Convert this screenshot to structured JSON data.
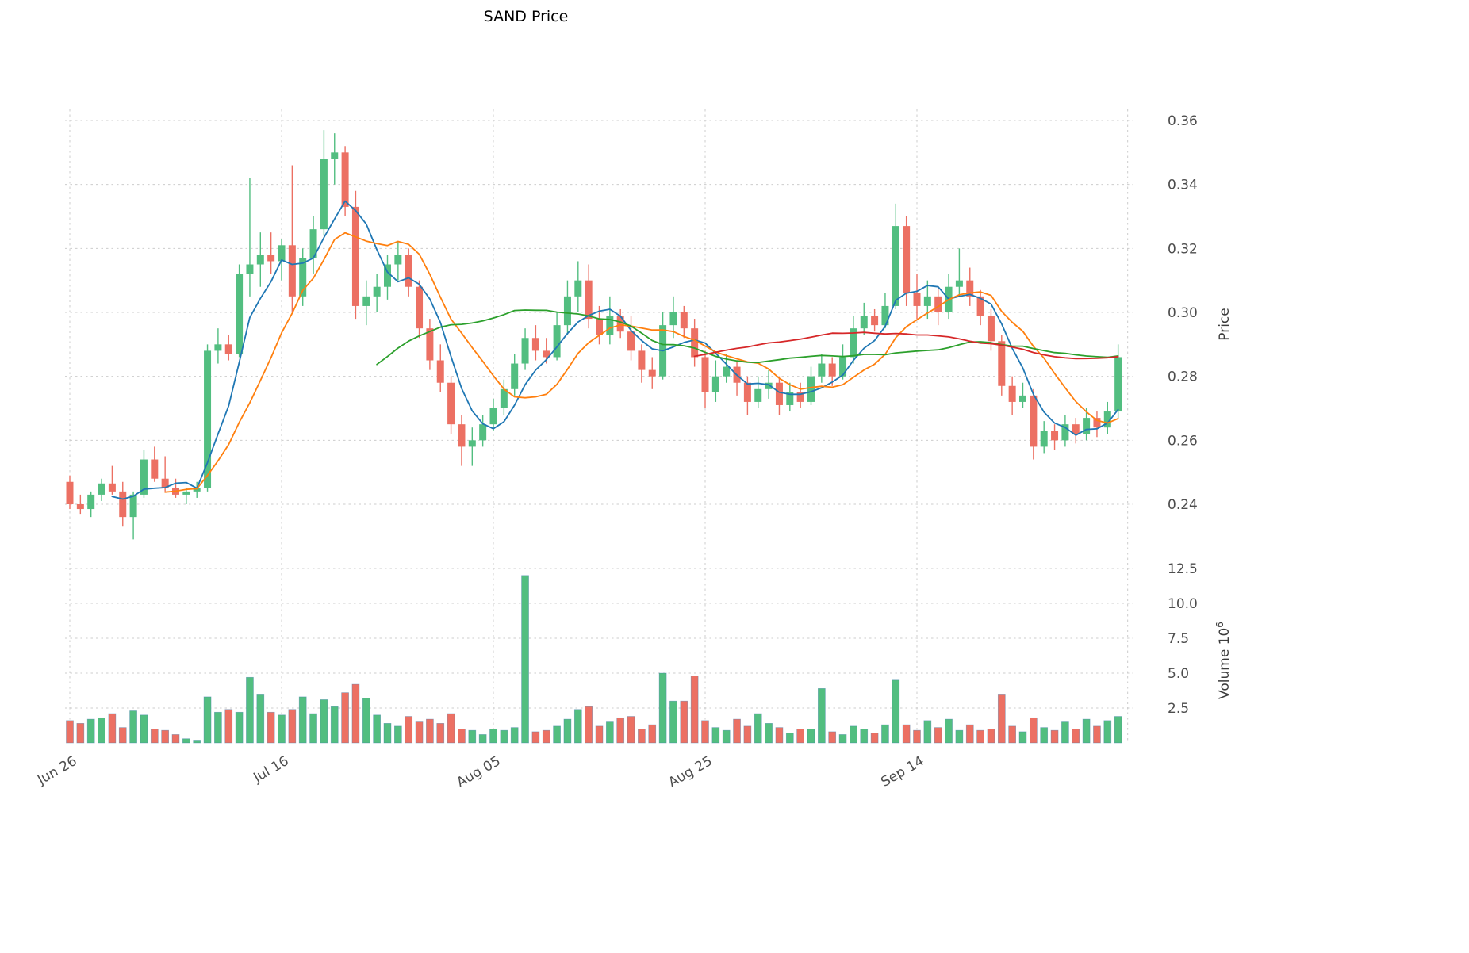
{
  "chart": {
    "title": "SAND Price",
    "background_color": "#ffffff",
    "grid_color": "#cccccc",
    "tick_text_color": "#4d4d4d",
    "up_color": "#52BE80",
    "down_color": "#EC7063",
    "volume_bar_edge_color": "#3f7cac",
    "price_axis": {
      "label": "Price",
      "ticks": [
        0.24,
        0.26,
        0.28,
        0.3,
        0.32,
        0.34,
        0.36
      ]
    },
    "volume_axis": {
      "label": "Volume",
      "unit_base": " 10",
      "unit_exponent": "6",
      "ticks": [
        2.5,
        5.0,
        7.5,
        10.0,
        12.5
      ]
    },
    "x_ticks": [
      {
        "index": 0,
        "label": "Jun 26"
      },
      {
        "index": 20,
        "label": "Jul 16"
      },
      {
        "index": 40,
        "label": "Aug 05"
      },
      {
        "index": 60,
        "label": "Aug 25"
      },
      {
        "index": 80,
        "label": "Sep 14"
      }
    ]
  },
  "chart_data": {
    "type": "candlestick",
    "panels": [
      "price",
      "volume"
    ],
    "title": "SAND Price",
    "ylabel_price": "Price",
    "ylabel_volume": "Volume 10^6",
    "price_ylim": [
      0.224,
      0.364
    ],
    "volume_ylim": [
      0,
      13.5
    ],
    "grid": "dashed",
    "legend": "none",
    "overlays": [
      {
        "name": "MA5",
        "type": "sma",
        "window": 5,
        "color": "#1f77b4"
      },
      {
        "name": "MA10",
        "type": "sma",
        "window": 10,
        "color": "#ff7f0e"
      },
      {
        "name": "MA30",
        "type": "sma",
        "window": 30,
        "color": "#2ca02c"
      },
      {
        "name": "MA60",
        "type": "sma",
        "window": 60,
        "color": "#d62728"
      }
    ],
    "open": [
      0.247,
      0.24,
      0.2385,
      0.243,
      0.2465,
      0.244,
      0.236,
      0.243,
      0.254,
      0.248,
      0.245,
      0.243,
      0.244,
      0.245,
      0.288,
      0.29,
      0.287,
      0.312,
      0.315,
      0.318,
      0.316,
      0.321,
      0.305,
      0.317,
      0.326,
      0.348,
      0.35,
      0.333,
      0.302,
      0.305,
      0.308,
      0.315,
      0.318,
      0.308,
      0.295,
      0.285,
      0.278,
      0.265,
      0.258,
      0.26,
      0.265,
      0.27,
      0.276,
      0.284,
      0.292,
      0.288,
      0.286,
      0.296,
      0.305,
      0.31,
      0.298,
      0.293,
      0.299,
      0.294,
      0.288,
      0.282,
      0.28,
      0.296,
      0.3,
      0.295,
      0.286,
      0.275,
      0.28,
      0.283,
      0.278,
      0.272,
      0.276,
      0.278,
      0.271,
      0.275,
      0.272,
      0.28,
      0.284,
      0.28,
      0.286,
      0.295,
      0.299,
      0.296,
      0.302,
      0.327,
      0.306,
      0.302,
      0.305,
      0.3,
      0.308,
      0.31,
      0.305,
      0.299,
      0.291,
      0.277,
      0.272,
      0.274,
      0.258,
      0.263,
      0.26,
      0.265,
      0.262,
      0.267,
      0.264,
      0.269
    ],
    "high": [
      0.249,
      0.243,
      0.244,
      0.248,
      0.252,
      0.247,
      0.244,
      0.257,
      0.258,
      0.255,
      0.248,
      0.245,
      0.247,
      0.29,
      0.295,
      0.293,
      0.315,
      0.342,
      0.325,
      0.325,
      0.323,
      0.346,
      0.32,
      0.33,
      0.357,
      0.356,
      0.352,
      0.338,
      0.31,
      0.312,
      0.318,
      0.322,
      0.32,
      0.31,
      0.298,
      0.29,
      0.28,
      0.268,
      0.264,
      0.268,
      0.273,
      0.279,
      0.287,
      0.295,
      0.296,
      0.292,
      0.3,
      0.31,
      0.316,
      0.315,
      0.302,
      0.305,
      0.301,
      0.299,
      0.29,
      0.286,
      0.3,
      0.305,
      0.302,
      0.298,
      0.288,
      0.285,
      0.287,
      0.285,
      0.28,
      0.28,
      0.282,
      0.28,
      0.278,
      0.278,
      0.283,
      0.287,
      0.286,
      0.29,
      0.299,
      0.303,
      0.301,
      0.306,
      0.334,
      0.33,
      0.312,
      0.31,
      0.308,
      0.312,
      0.32,
      0.314,
      0.307,
      0.301,
      0.293,
      0.28,
      0.278,
      0.276,
      0.266,
      0.265,
      0.268,
      0.267,
      0.27,
      0.269,
      0.272,
      0.29
    ],
    "low": [
      0.2385,
      0.237,
      0.236,
      0.241,
      0.243,
      0.233,
      0.229,
      0.242,
      0.247,
      0.244,
      0.242,
      0.24,
      0.242,
      0.244,
      0.284,
      0.285,
      0.286,
      0.305,
      0.308,
      0.312,
      0.31,
      0.3,
      0.302,
      0.312,
      0.324,
      0.34,
      0.33,
      0.298,
      0.296,
      0.3,
      0.304,
      0.31,
      0.305,
      0.292,
      0.282,
      0.275,
      0.262,
      0.252,
      0.252,
      0.258,
      0.263,
      0.268,
      0.274,
      0.282,
      0.285,
      0.284,
      0.285,
      0.293,
      0.3,
      0.295,
      0.29,
      0.29,
      0.292,
      0.285,
      0.278,
      0.276,
      0.279,
      0.292,
      0.292,
      0.283,
      0.27,
      0.272,
      0.278,
      0.274,
      0.268,
      0.27,
      0.273,
      0.268,
      0.269,
      0.27,
      0.271,
      0.278,
      0.277,
      0.279,
      0.284,
      0.293,
      0.294,
      0.295,
      0.301,
      0.302,
      0.298,
      0.298,
      0.296,
      0.298,
      0.305,
      0.302,
      0.296,
      0.288,
      0.274,
      0.268,
      0.27,
      0.254,
      0.256,
      0.257,
      0.258,
      0.259,
      0.26,
      0.261,
      0.262,
      0.267
    ],
    "close": [
      0.24,
      0.2385,
      0.243,
      0.2465,
      0.244,
      0.236,
      0.243,
      0.254,
      0.248,
      0.245,
      0.243,
      0.244,
      0.245,
      0.288,
      0.29,
      0.287,
      0.312,
      0.315,
      0.318,
      0.316,
      0.321,
      0.305,
      0.317,
      0.326,
      0.348,
      0.35,
      0.333,
      0.302,
      0.305,
      0.308,
      0.315,
      0.318,
      0.308,
      0.295,
      0.285,
      0.278,
      0.265,
      0.258,
      0.26,
      0.265,
      0.27,
      0.276,
      0.284,
      0.292,
      0.288,
      0.286,
      0.296,
      0.305,
      0.31,
      0.298,
      0.293,
      0.299,
      0.294,
      0.288,
      0.282,
      0.28,
      0.296,
      0.3,
      0.295,
      0.286,
      0.275,
      0.28,
      0.283,
      0.278,
      0.272,
      0.276,
      0.278,
      0.271,
      0.275,
      0.272,
      0.28,
      0.284,
      0.28,
      0.286,
      0.295,
      0.299,
      0.296,
      0.302,
      0.327,
      0.306,
      0.302,
      0.305,
      0.3,
      0.308,
      0.31,
      0.305,
      0.299,
      0.291,
      0.277,
      0.272,
      0.274,
      0.258,
      0.263,
      0.26,
      0.265,
      0.262,
      0.267,
      0.264,
      0.269,
      0.286
    ],
    "volume": [
      1.6,
      1.4,
      1.7,
      1.8,
      2.1,
      1.1,
      2.3,
      2.0,
      1.0,
      0.9,
      0.6,
      0.3,
      0.2,
      3.3,
      2.2,
      2.4,
      2.2,
      4.7,
      3.5,
      2.2,
      2.0,
      2.4,
      3.3,
      2.1,
      3.1,
      2.6,
      3.6,
      4.2,
      3.2,
      2.0,
      1.4,
      1.2,
      1.9,
      1.5,
      1.7,
      1.4,
      2.1,
      1.0,
      0.9,
      0.6,
      1.0,
      0.9,
      1.1,
      12.0,
      0.8,
      0.9,
      1.2,
      1.7,
      2.4,
      2.6,
      1.2,
      1.5,
      1.8,
      1.9,
      1.0,
      1.3,
      5.0,
      3.0,
      3.0,
      4.8,
      1.6,
      1.1,
      0.9,
      1.7,
      1.2,
      2.1,
      1.4,
      1.1,
      0.7,
      1.0,
      1.0,
      3.9,
      0.8,
      0.6,
      1.2,
      1.0,
      0.7,
      1.3,
      4.5,
      1.3,
      0.9,
      1.6,
      1.1,
      1.7,
      0.9,
      1.3,
      0.9,
      1.0,
      3.5,
      1.2,
      0.8,
      1.8,
      1.1,
      0.9,
      1.5,
      1.0,
      1.7,
      1.2,
      1.6,
      1.9
    ]
  }
}
